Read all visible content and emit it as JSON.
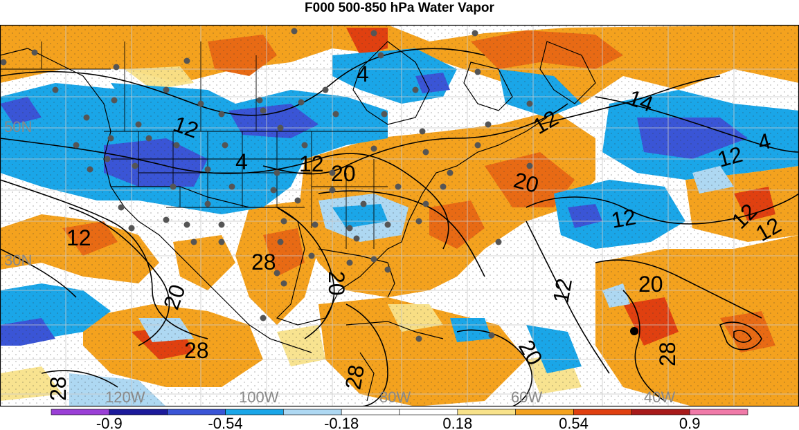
{
  "title": "F000 500-850 hPa Water Vapor",
  "latitude_labels": [
    "50N",
    "30N"
  ],
  "longitude_labels": [
    "120W",
    "100W",
    "80W",
    "60W",
    "40W"
  ],
  "contour_labels": [
    "4",
    "12",
    "12",
    "4",
    "12",
    "20",
    "20",
    "12",
    "12",
    "4",
    "12",
    "12",
    "28",
    "20",
    "20",
    "28",
    "12",
    "20",
    "28",
    "28",
    "20",
    "14",
    "12",
    "28"
  ],
  "colorbar": {
    "colors": [
      "#9a3fd6",
      "#1c1a9a",
      "#3a55d6",
      "#1aa6e8",
      "#aed8f2",
      "#ffffff",
      "#ffffff",
      "#f8e28a",
      "#f4a21e",
      "#e04010",
      "#a81a1a",
      "#f07aa8"
    ],
    "tick_labels": [
      "-0.9",
      "-0.54",
      "-0.18",
      "0.18",
      "0.54",
      "0.9"
    ]
  },
  "colors": {
    "orange": "#f4a21e",
    "dark_orange": "#e86a14",
    "red_orange": "#e04010",
    "light_yellow": "#f8e28a",
    "light_blue": "#aed8f2",
    "blue": "#1aa6e8",
    "dark_blue": "#3a55d6",
    "grid": "#c8c8c8",
    "station": "#555555"
  }
}
